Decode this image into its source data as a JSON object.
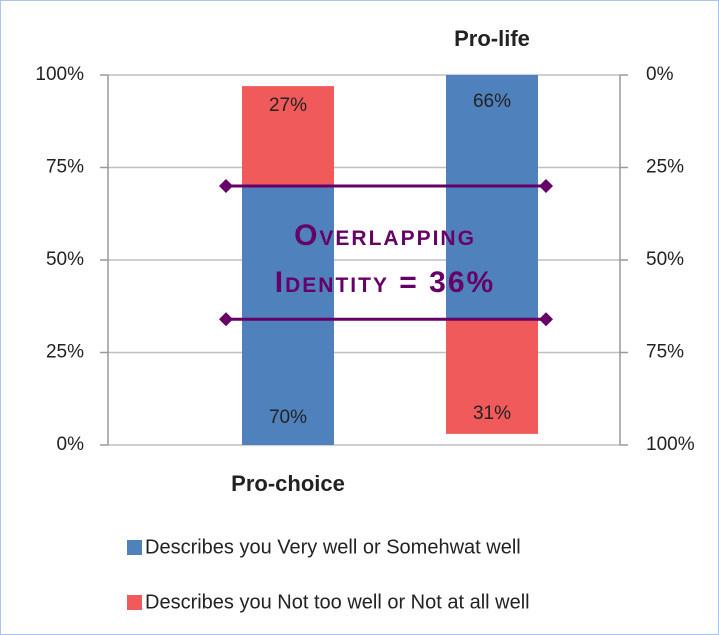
{
  "chart_data": {
    "type": "bar",
    "categories": [
      "Pro-choice",
      "Pro-life"
    ],
    "category_axes": [
      "y",
      "y2"
    ],
    "series": [
      {
        "name": "Describes you Very well or Somehwat well",
        "color": "#4f81bd",
        "values": [
          70,
          66
        ],
        "value_labels": [
          "70%",
          "66%"
        ]
      },
      {
        "name": "Describes you Not too well or Not at all well",
        "color": "#f15a5a",
        "values": [
          27,
          31
        ],
        "value_labels": [
          "27%",
          "31%"
        ]
      }
    ],
    "ylim": [
      0,
      100
    ],
    "yticks": [
      {
        "value": 0,
        "label": "0%"
      },
      {
        "value": 25,
        "label": "25%"
      },
      {
        "value": 50,
        "label": "50%"
      },
      {
        "value": 75,
        "label": "75%"
      },
      {
        "value": 100,
        "label": "100%"
      }
    ],
    "y2lim": [
      100,
      0
    ],
    "y2ticks": [
      {
        "value": 0,
        "label": "0%"
      },
      {
        "value": 25,
        "label": "25%"
      },
      {
        "value": 50,
        "label": "50%"
      },
      {
        "value": 75,
        "label": "75%"
      },
      {
        "value": 100,
        "label": "100%"
      }
    ],
    "grid": true,
    "annotation": {
      "lines": [
        "Overlapping",
        "Identity = 36%"
      ],
      "color": "#660066",
      "bounds": [
        70,
        34
      ]
    }
  }
}
